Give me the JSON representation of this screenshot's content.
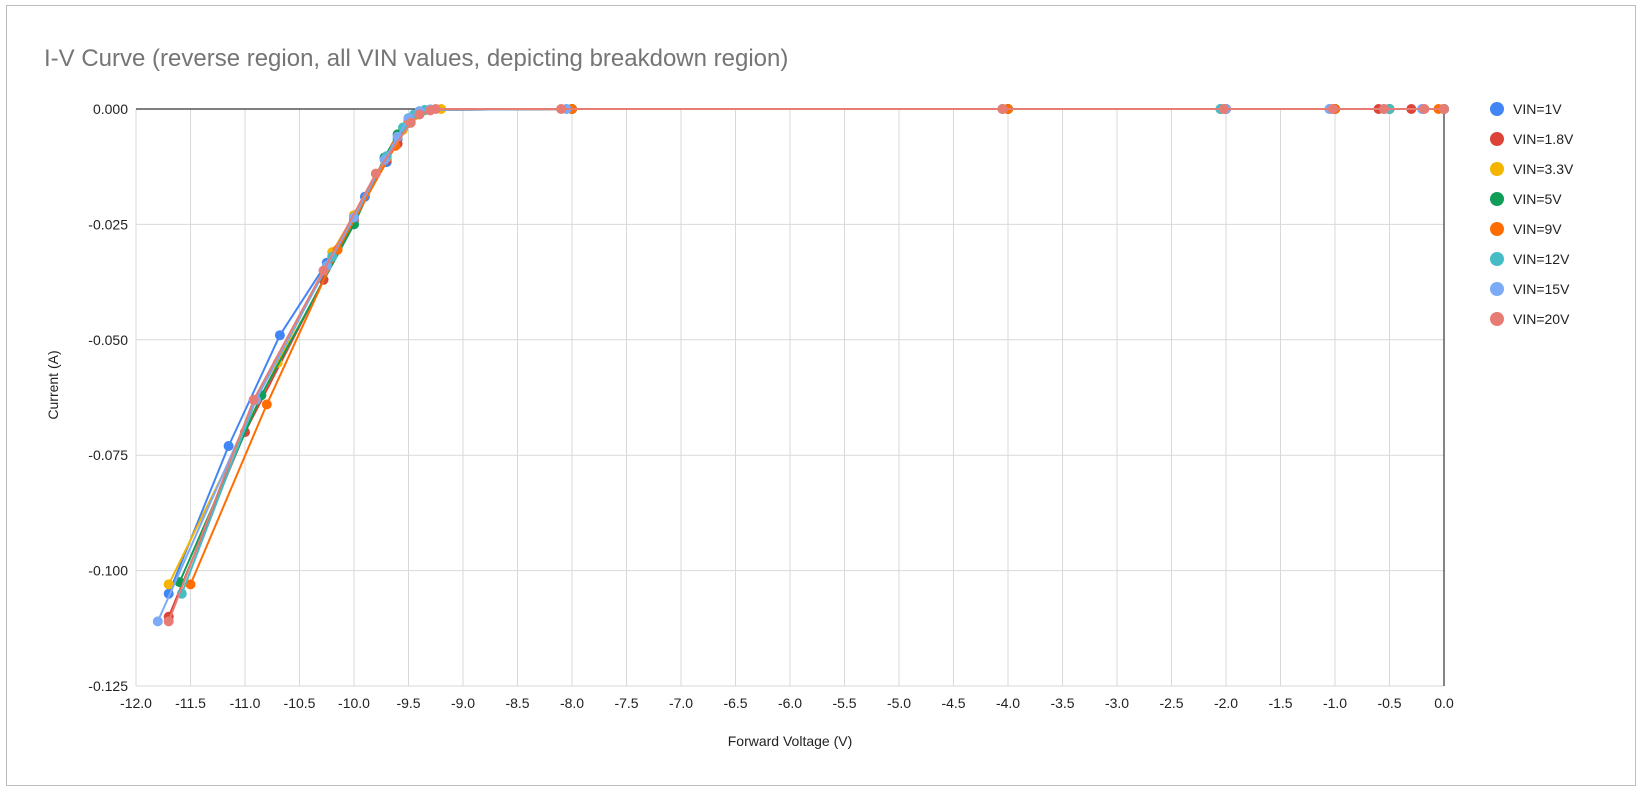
{
  "chart_data": {
    "type": "line",
    "title": "I-V Curve (reverse region, all VIN values, depicting breakdown region)",
    "xlabel": "Forward Voltage (V)",
    "ylabel": "Current (A)",
    "xlim": [
      -12.0,
      0.0
    ],
    "ylim": [
      -0.125,
      0.0
    ],
    "x_ticks": [
      -12.0,
      -11.5,
      -11.0,
      -10.5,
      -10.0,
      -9.5,
      -9.0,
      -8.5,
      -8.0,
      -7.5,
      -7.0,
      -6.5,
      -6.0,
      -5.5,
      -5.0,
      -4.5,
      -4.0,
      -3.5,
      -3.0,
      -2.5,
      -2.0,
      -1.5,
      -1.0,
      -0.5,
      0.0
    ],
    "x_tick_labels": [
      "-12.0",
      "-11.5",
      "-11.0",
      "-10.5",
      "-10.0",
      "-9.5",
      "-9.0",
      "-8.5",
      "-8.0",
      "-7.5",
      "-7.0",
      "-6.5",
      "-6.0",
      "-5.5",
      "-5.0",
      "-4.5",
      "-4.0",
      "-3.5",
      "-3.0",
      "-2.5",
      "-2.0",
      "-1.5",
      "-1.0",
      "-0.5",
      "0.0"
    ],
    "y_ticks": [
      0.0,
      -0.025,
      -0.05,
      -0.075,
      -0.1,
      -0.125
    ],
    "y_tick_labels": [
      "0.000",
      "-0.025",
      "-0.050",
      "-0.075",
      "-0.100",
      "-0.125"
    ],
    "grid": true,
    "legend_position": "right",
    "series": [
      {
        "name": "VIN=1V",
        "color": "#4285f4",
        "points": [
          [
            -11.7,
            -0.105
          ],
          [
            -11.15,
            -0.073
          ],
          [
            -10.68,
            -0.049
          ],
          [
            -10.25,
            -0.0333
          ],
          [
            -10.0,
            -0.023
          ],
          [
            -9.9,
            -0.019
          ],
          [
            -9.7,
            -0.0115
          ],
          [
            -9.6,
            -0.0065
          ],
          [
            -9.5,
            -0.0025
          ],
          [
            -9.4,
            -0.0008
          ],
          [
            -9.3,
            -0.0002
          ],
          [
            -8.0,
            0.0
          ],
          [
            -4.0,
            0.0
          ],
          [
            -2.0,
            0.0
          ],
          [
            -1.0,
            0.0
          ],
          [
            -0.5,
            0.0
          ],
          [
            -0.2,
            0.0
          ],
          [
            0.0,
            0.0
          ]
        ]
      },
      {
        "name": "VIN=1.8V",
        "color": "#db4437",
        "points": [
          [
            -11.7,
            -0.11
          ],
          [
            -11.0,
            -0.07
          ],
          [
            -10.28,
            -0.037
          ],
          [
            -10.0,
            -0.024
          ],
          [
            -9.7,
            -0.011
          ],
          [
            -9.6,
            -0.0075
          ],
          [
            -9.5,
            -0.003
          ],
          [
            -9.4,
            -0.001
          ],
          [
            -9.3,
            -0.0002
          ],
          [
            -8.0,
            0.0
          ],
          [
            -4.0,
            0.0
          ],
          [
            -2.0,
            0.0
          ],
          [
            -1.0,
            0.0
          ],
          [
            -0.6,
            0.0
          ],
          [
            -0.3,
            0.0
          ],
          [
            0.0,
            0.0
          ]
        ]
      },
      {
        "name": "VIN=3.3V",
        "color": "#f4b400",
        "points": [
          [
            -11.7,
            -0.103
          ],
          [
            -10.7,
            -0.055
          ],
          [
            -10.2,
            -0.031
          ],
          [
            -10.0,
            -0.023
          ],
          [
            -9.7,
            -0.0105
          ],
          [
            -9.55,
            -0.0045
          ],
          [
            -9.45,
            -0.0015
          ],
          [
            -9.35,
            -0.0003
          ],
          [
            -9.2,
            0.0
          ],
          [
            -8.0,
            0.0
          ],
          [
            -4.0,
            0.0
          ],
          [
            -2.0,
            0.0
          ],
          [
            -1.0,
            0.0
          ],
          [
            -0.5,
            0.0
          ],
          [
            0.0,
            0.0
          ]
        ]
      },
      {
        "name": "VIN=5V",
        "color": "#0f9d58",
        "points": [
          [
            -11.6,
            -0.1025
          ],
          [
            -10.85,
            -0.062
          ],
          [
            -10.0,
            -0.025
          ],
          [
            -9.72,
            -0.0105
          ],
          [
            -9.6,
            -0.0055
          ],
          [
            -9.5,
            -0.002
          ],
          [
            -9.4,
            -0.0005
          ],
          [
            -9.3,
            -0.0001
          ],
          [
            -8.0,
            0.0
          ],
          [
            -4.0,
            0.0
          ],
          [
            -2.05,
            0.0
          ],
          [
            -1.0,
            0.0
          ],
          [
            -0.5,
            0.0
          ],
          [
            0.0,
            0.0
          ]
        ]
      },
      {
        "name": "VIN=9V",
        "color": "#ff6d01",
        "points": [
          [
            -11.5,
            -0.103
          ],
          [
            -10.8,
            -0.064
          ],
          [
            -10.15,
            -0.0305
          ],
          [
            -9.62,
            -0.008
          ],
          [
            -9.5,
            -0.003
          ],
          [
            -9.4,
            -0.001
          ],
          [
            -9.3,
            -0.0002
          ],
          [
            -8.0,
            0.0
          ],
          [
            -4.0,
            0.0
          ],
          [
            -2.0,
            0.0
          ],
          [
            -1.0,
            0.0
          ],
          [
            -0.5,
            0.0
          ],
          [
            -0.05,
            0.0
          ],
          [
            0.0,
            0.0
          ]
        ]
      },
      {
        "name": "VIN=12V",
        "color": "#46bdc6",
        "points": [
          [
            -11.58,
            -0.105
          ],
          [
            -10.9,
            -0.063
          ],
          [
            -10.2,
            -0.032
          ],
          [
            -9.7,
            -0.0102
          ],
          [
            -9.55,
            -0.004
          ],
          [
            -9.45,
            -0.0012
          ],
          [
            -9.35,
            -0.0002
          ],
          [
            -8.05,
            0.0
          ],
          [
            -4.05,
            0.0
          ],
          [
            -2.05,
            0.0
          ],
          [
            -1.05,
            0.0
          ],
          [
            -0.5,
            0.0
          ],
          [
            0.0,
            0.0
          ]
        ]
      },
      {
        "name": "VIN=15V",
        "color": "#7baaf7",
        "points": [
          [
            -11.8,
            -0.111
          ],
          [
            -10.9,
            -0.063
          ],
          [
            -10.25,
            -0.034
          ],
          [
            -10.0,
            -0.0235
          ],
          [
            -9.72,
            -0.011
          ],
          [
            -9.6,
            -0.006
          ],
          [
            -9.5,
            -0.002
          ],
          [
            -9.4,
            -0.0005
          ],
          [
            -9.3,
            -0.0001
          ],
          [
            -8.05,
            0.0
          ],
          [
            -4.05,
            0.0
          ],
          [
            -2.0,
            0.0
          ],
          [
            -1.05,
            0.0
          ],
          [
            -0.55,
            0.0
          ],
          [
            -0.2,
            0.0
          ],
          [
            0.0,
            0.0
          ]
        ]
      },
      {
        "name": "VIN=20V",
        "color": "#e67c73",
        "points": [
          [
            -11.7,
            -0.111
          ],
          [
            -10.92,
            -0.063
          ],
          [
            -10.28,
            -0.035
          ],
          [
            -9.8,
            -0.014
          ],
          [
            -9.48,
            -0.003
          ],
          [
            -9.4,
            -0.0012
          ],
          [
            -9.3,
            -0.0003
          ],
          [
            -9.25,
            0.0
          ],
          [
            -8.1,
            0.0
          ],
          [
            -4.05,
            0.0
          ],
          [
            -2.02,
            0.0
          ],
          [
            -1.02,
            0.0
          ],
          [
            -0.55,
            0.0
          ],
          [
            -0.18,
            0.0
          ],
          [
            0.0,
            0.0
          ]
        ]
      }
    ]
  }
}
